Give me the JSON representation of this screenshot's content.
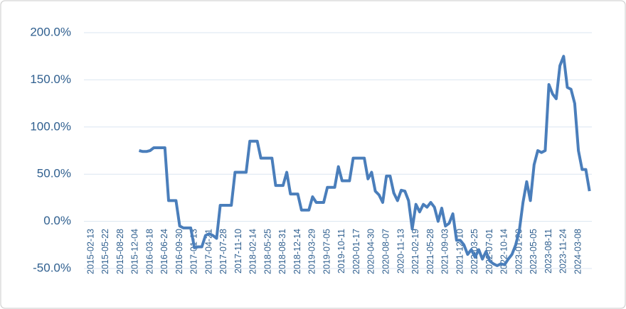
{
  "chart_data": {
    "type": "line",
    "categories": [
      "2015-02-13",
      null,
      null,
      null,
      "2015-05-22",
      null,
      null,
      null,
      "2015-08-28",
      null,
      null,
      null,
      "2015-12-04",
      null,
      null,
      null,
      "2016-03-18",
      null,
      null,
      null,
      "2016-06-24",
      null,
      null,
      null,
      "2016-09-30",
      null,
      null,
      null,
      "2017-01-13",
      null,
      null,
      null,
      "2017-04-21",
      null,
      null,
      null,
      "2017-07-28",
      null,
      null,
      null,
      "2017-11-10",
      null,
      null,
      null,
      "2018-02-14",
      null,
      null,
      null,
      "2018-05-25",
      null,
      null,
      null,
      "2018-08-31",
      null,
      null,
      null,
      "2018-12-14",
      null,
      null,
      null,
      "2019-03-29",
      null,
      null,
      null,
      "2019-07-05",
      null,
      null,
      null,
      "2019-10-11",
      null,
      null,
      null,
      "2020-01-17",
      null,
      null,
      null,
      "2020-04-30",
      null,
      null,
      null,
      "2020-08-07",
      null,
      null,
      null,
      "2020-11-13",
      null,
      null,
      null,
      "2021-02-19",
      null,
      null,
      null,
      "2021-05-28",
      null,
      null,
      null,
      "2021-09-03",
      null,
      null,
      null,
      "2021-12-10",
      null,
      null,
      null,
      "2022-03-25",
      null,
      null,
      null,
      "2022-07-01",
      null,
      null,
      null,
      "2022-10-14",
      null,
      null,
      null,
      "2023-01-20",
      null,
      null,
      null,
      "2023-05-05",
      null,
      null,
      null,
      "2023-08-11",
      null,
      null,
      null,
      "2023-11-24",
      null,
      null,
      null,
      "2024-03-08",
      null,
      null,
      null
    ],
    "values": [
      null,
      null,
      null,
      null,
      null,
      null,
      null,
      null,
      null,
      null,
      null,
      null,
      null,
      75,
      74,
      74,
      75,
      78,
      78,
      78,
      78,
      22,
      22,
      22,
      -5,
      -7,
      -7,
      -7,
      -28,
      -27,
      -27,
      -15,
      -13,
      -15,
      -18,
      17,
      17,
      17,
      17,
      52,
      52,
      52,
      52,
      85,
      85,
      85,
      67,
      67,
      67,
      67,
      38,
      38,
      38,
      52,
      29,
      29,
      29,
      12,
      12,
      12,
      26,
      20,
      20,
      20,
      36,
      36,
      36,
      58,
      43,
      43,
      43,
      67,
      67,
      67,
      67,
      45,
      52,
      32,
      28,
      20,
      48,
      48,
      30,
      22,
      33,
      32,
      22,
      -8,
      18,
      10,
      18,
      15,
      20,
      15,
      0,
      14,
      -5,
      -2,
      8,
      -20,
      -20,
      -25,
      -35,
      -30,
      -38,
      -30,
      -40,
      -32,
      -42,
      -45,
      -47,
      -45,
      -46,
      -40,
      -35,
      -25,
      -10,
      20,
      42,
      22,
      60,
      75,
      73,
      75,
      145,
      135,
      130,
      165,
      175,
      142,
      140,
      125,
      75,
      55,
      55,
      32
    ],
    "color": "#4a7ebb",
    "ylim": [
      -50,
      200
    ],
    "yticks": [
      {
        "value": -50,
        "label": "-50.0%"
      },
      {
        "value": 0,
        "label": "0.0%"
      },
      {
        "value": 50,
        "label": "50.0%"
      },
      {
        "value": 100,
        "label": "100.0%"
      },
      {
        "value": 150,
        "label": "150.0%"
      },
      {
        "value": 200,
        "label": "200.0%"
      }
    ],
    "grid": true
  }
}
